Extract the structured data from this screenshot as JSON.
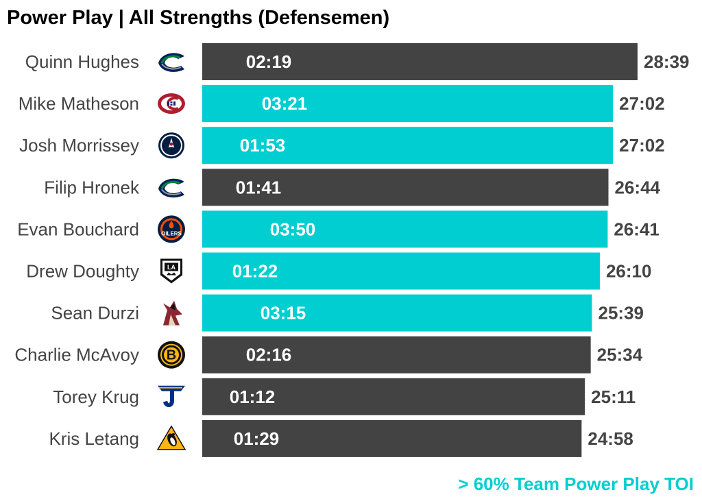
{
  "chart_data": {
    "type": "bar",
    "orientation": "horizontal",
    "title": "Power Play | All Strengths (Defensemen)",
    "value_unit": "mm:ss",
    "series_colors": {
      "highlight": "#00CED1",
      "default": "#434343"
    },
    "rows": [
      {
        "player": "Quinn Hughes",
        "team_icon": "canucks-logo-icon",
        "toi_total": "28:39",
        "toi_total_minutes": 28.65,
        "pp_toi": "02:19",
        "highlight": false
      },
      {
        "player": "Mike Matheson",
        "team_icon": "canadiens-logo-icon",
        "toi_total": "27:02",
        "toi_total_minutes": 27.033,
        "pp_toi": "03:21",
        "highlight": true
      },
      {
        "player": "Josh Morrissey",
        "team_icon": "jets-logo-icon",
        "toi_total": "27:02",
        "toi_total_minutes": 27.033,
        "pp_toi": "01:53",
        "highlight": true
      },
      {
        "player": "Filip Hronek",
        "team_icon": "canucks-logo-icon",
        "toi_total": "26:44",
        "toi_total_minutes": 26.733,
        "pp_toi": "01:41",
        "highlight": false
      },
      {
        "player": "Evan Bouchard",
        "team_icon": "oilers-logo-icon",
        "toi_total": "26:41",
        "toi_total_minutes": 26.683,
        "pp_toi": "03:50",
        "highlight": true
      },
      {
        "player": "Drew Doughty",
        "team_icon": "kings-logo-icon",
        "toi_total": "26:10",
        "toi_total_minutes": 26.167,
        "pp_toi": "01:22",
        "highlight": true
      },
      {
        "player": "Sean Durzi",
        "team_icon": "coyotes-logo-icon",
        "toi_total": "25:39",
        "toi_total_minutes": 25.65,
        "pp_toi": "03:15",
        "highlight": true
      },
      {
        "player": "Charlie McAvoy",
        "team_icon": "bruins-logo-icon",
        "toi_total": "25:34",
        "toi_total_minutes": 25.567,
        "pp_toi": "02:16",
        "highlight": false
      },
      {
        "player": "Torey Krug",
        "team_icon": "blues-logo-icon",
        "toi_total": "25:11",
        "toi_total_minutes": 25.183,
        "pp_toi": "01:12",
        "highlight": false
      },
      {
        "player": "Kris Letang",
        "team_icon": "penguins-logo-icon",
        "toi_total": "24:58",
        "toi_total_minutes": 24.967,
        "pp_toi": "01:29",
        "highlight": false
      }
    ],
    "legend": {
      "text": "> 60% Team Power Play TOI",
      "color": "#00CED1",
      "placement": "bottom-right"
    }
  }
}
